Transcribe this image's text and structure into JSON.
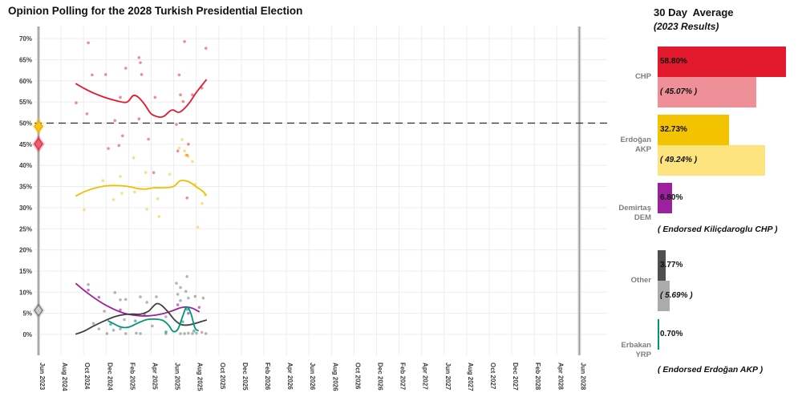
{
  "title": "Opinion Polling for the 2028 Turkish Presidential Election",
  "panel": {
    "header": "30 Day  Average",
    "subheader": "(2023 Results)",
    "parties": [
      {
        "id": "chp",
        "name_line1": "CHP",
        "name_line2": "",
        "avg": 58.8,
        "avg_label": "58.80%",
        "result": 45.07,
        "result_label": "( 45.07% )",
        "bar_color": "#e2192c",
        "result_bar_color": "#ef9098"
      },
      {
        "id": "akp",
        "name_line1": "Erdoğan",
        "name_line2": "AKP",
        "avg": 32.73,
        "avg_label": "32.73%",
        "result": 49.24,
        "result_label": "( 49.24% )",
        "bar_color": "#f3c300",
        "result_bar_color": "#fde47f"
      },
      {
        "id": "dem",
        "name_line1": "Demirtaş",
        "name_line2": "DEM",
        "avg": 6.8,
        "avg_label": "6.80%",
        "endorsement": "( Endorsed Kiliçdaroglu CHP )",
        "bar_color": "#9c219c"
      },
      {
        "id": "other",
        "name_line1": "Other",
        "name_line2": "",
        "avg": 3.77,
        "avg_label": "3.77%",
        "result": 5.69,
        "result_label": "( 5.69% )",
        "bar_color": "#4f4f4f",
        "result_bar_color": "#ababab"
      },
      {
        "id": "yrp",
        "name_line1": "Erbakan",
        "name_line2": "YRP",
        "avg": 0.7,
        "avg_label": "0.70%",
        "endorsement": "( Endorsed Erdoğan AKP )",
        "bar_color": "#009478"
      }
    ]
  },
  "chart_data": {
    "type": "scatter",
    "title": "Opinion Polling for the 2028 Turkish Presidential Election",
    "x_axis": {
      "note": "t = tick index, ticks evenly spaced; first tick Jun 2023, then every 2 months Aug 2024 - Jun 2028",
      "tick_labels": [
        "Jun 2023",
        "Aug 2024",
        "Oct 2024",
        "Dec 2024",
        "Feb 2025",
        "Apr 2025",
        "Jun 2025",
        "Aug 2025",
        "Oct 2025",
        "Dec 2025",
        "Feb 2026",
        "Apr 2026",
        "Jun 2026",
        "Aug 2026",
        "Oct 2026",
        "Dec 2026",
        "Feb 2027",
        "Apr 2027",
        "Jun 2027",
        "Aug 2027",
        "Oct 2027",
        "Dec 2027",
        "Feb 2028",
        "Apr 2028",
        "Jun 2028"
      ]
    },
    "y_axis": {
      "unit": "%",
      "ticks": [
        0,
        5,
        10,
        15,
        20,
        25,
        30,
        35,
        40,
        45,
        50,
        55,
        60,
        65,
        70
      ],
      "ylim": [
        0,
        72
      ]
    },
    "grid": true,
    "majority_line_pct": 50,
    "election_vline_ticks": [
      0,
      24
    ],
    "markers_2023_results": [
      {
        "party": "Erdoğan AKP",
        "value": 49.24,
        "fill": "#f5c518",
        "stroke": "#e0ac00",
        "halo": "#f5c518"
      },
      {
        "party": "Kılıçdaroğlu CHP",
        "value": 45.07,
        "fill": "#ea5f72",
        "stroke": "#d92742",
        "halo": "#e2192c"
      },
      {
        "party": "Other",
        "value": 5.69,
        "fill": "#c9c9c9",
        "stroke": "#6f6f6f",
        "halo": "#9a9a9a"
      }
    ],
    "series": [
      {
        "name": "CHP",
        "color": "#e2192c",
        "point_color": "rgba(227,25,44,0.5)",
        "trend": [
          [
            1.67,
            59.3
          ],
          [
            2.03,
            58.2
          ],
          [
            2.49,
            57.0
          ],
          [
            2.99,
            56.0
          ],
          [
            3.45,
            55.3
          ],
          [
            3.81,
            54.9
          ],
          [
            3.99,
            55.2
          ],
          [
            4.2,
            56.5
          ],
          [
            4.41,
            56.2
          ],
          [
            4.7,
            54.5
          ],
          [
            4.98,
            52.3
          ],
          [
            5.23,
            51.6
          ],
          [
            5.41,
            51.4
          ],
          [
            5.59,
            51.7
          ],
          [
            5.84,
            52.9
          ],
          [
            5.98,
            53.1
          ],
          [
            6.16,
            52.6
          ],
          [
            6.33,
            52.8
          ],
          [
            6.65,
            54.5
          ],
          [
            7.01,
            57.3
          ],
          [
            7.26,
            59.0
          ],
          [
            7.44,
            60.2
          ]
        ],
        "polls": [
          [
            2.21,
            69.0
          ],
          [
            6.48,
            69.3
          ],
          [
            7.43,
            67.7
          ],
          [
            4.46,
            65.5
          ],
          [
            4.52,
            64.3
          ],
          [
            3.87,
            63.0
          ],
          [
            2.38,
            61.4
          ],
          [
            2.98,
            61.5
          ],
          [
            4.58,
            61.5
          ],
          [
            6.24,
            61.4
          ],
          [
            7.25,
            58.3
          ],
          [
            6.83,
            56.7
          ],
          [
            5.17,
            56.1
          ],
          [
            3.63,
            56.1
          ],
          [
            1.67,
            54.8
          ],
          [
            2.15,
            52.2
          ],
          [
            3.39,
            50.6
          ],
          [
            4.46,
            51.0
          ],
          [
            4.88,
            46.2
          ],
          [
            3.1,
            44.0
          ],
          [
            3.57,
            44.7
          ],
          [
            6.18,
            43.4
          ],
          [
            6.59,
            42.4
          ],
          [
            6.3,
            56.7
          ],
          [
            6.42,
            55.1
          ],
          [
            6.65,
            45.0
          ],
          [
            5.11,
            38.3
          ],
          [
            6.59,
            32.3
          ],
          [
            3.73,
            47.0
          ],
          [
            6.12,
            49.7
          ]
        ]
      },
      {
        "name": "Erdoğan AKP",
        "color": "#f0bf00",
        "point_color": "rgba(243,195,0,0.5)",
        "trend": [
          [
            1.67,
            32.8
          ],
          [
            2.14,
            34.0
          ],
          [
            2.63,
            34.8
          ],
          [
            3.1,
            35.2
          ],
          [
            3.63,
            35.2
          ],
          [
            4.09,
            34.9
          ],
          [
            4.41,
            34.5
          ],
          [
            4.77,
            34.4
          ],
          [
            5.12,
            34.7
          ],
          [
            5.48,
            34.7
          ],
          [
            5.84,
            34.8
          ],
          [
            6.05,
            35.2
          ],
          [
            6.26,
            36.3
          ],
          [
            6.48,
            36.4
          ],
          [
            6.72,
            36.0
          ],
          [
            7.01,
            34.9
          ],
          [
            7.26,
            34.0
          ],
          [
            7.44,
            33.0
          ]
        ],
        "polls": [
          [
            2.03,
            29.5
          ],
          [
            2.86,
            36.4
          ],
          [
            3.63,
            37.4
          ],
          [
            3.33,
            31.9
          ],
          [
            3.7,
            33.4
          ],
          [
            4.22,
            41.8
          ],
          [
            4.26,
            33.7
          ],
          [
            4.76,
            38.3
          ],
          [
            4.81,
            29.6
          ],
          [
            5.29,
            32.1
          ],
          [
            5.82,
            37.9
          ],
          [
            6.54,
            42.4
          ],
          [
            6.48,
            43.4
          ],
          [
            6.83,
            40.9
          ],
          [
            6.65,
            42.1
          ],
          [
            6.95,
            35.5
          ],
          [
            7.07,
            25.4
          ],
          [
            6.24,
            44.1
          ],
          [
            5.35,
            27.9
          ],
          [
            7.26,
            31.0
          ],
          [
            7.4,
            33.0
          ],
          [
            6.37,
            46.1
          ]
        ]
      },
      {
        "name": "Demirtaş DEM",
        "color": "#9c219c",
        "point_color": "rgba(156,33,156,0.6)",
        "trend": [
          [
            1.67,
            12.0
          ],
          [
            2.03,
            10.4
          ],
          [
            2.38,
            9.0
          ],
          [
            2.74,
            7.7
          ],
          [
            3.1,
            6.6
          ],
          [
            3.45,
            5.7
          ],
          [
            3.81,
            5.0
          ],
          [
            4.16,
            4.6
          ],
          [
            4.52,
            4.4
          ],
          [
            4.88,
            4.4
          ],
          [
            5.23,
            4.6
          ],
          [
            5.59,
            5.0
          ],
          [
            5.94,
            5.6
          ],
          [
            6.3,
            6.3
          ],
          [
            6.55,
            6.5
          ],
          [
            6.83,
            6.2
          ],
          [
            7.12,
            5.4
          ]
        ],
        "polls": [
          [
            2.21,
            10.5
          ],
          [
            2.68,
            8.8
          ],
          [
            3.63,
            5.8
          ],
          [
            4.7,
            4.8
          ],
          [
            6.18,
            7.0
          ],
          [
            6.65,
            5.0
          ],
          [
            7.13,
            6.4
          ]
        ]
      },
      {
        "name": "Other",
        "color": "#3f3f3f",
        "point_color": "rgba(90,90,90,0.45)",
        "trend": [
          [
            1.67,
            0.1
          ],
          [
            2.03,
            0.8
          ],
          [
            2.45,
            2.0
          ],
          [
            2.92,
            3.2
          ],
          [
            3.38,
            4.2
          ],
          [
            3.81,
            4.7
          ],
          [
            4.16,
            4.8
          ],
          [
            4.52,
            4.8
          ],
          [
            4.88,
            5.5
          ],
          [
            5.12,
            6.8
          ],
          [
            5.27,
            7.3
          ],
          [
            5.48,
            6.8
          ],
          [
            5.77,
            5.2
          ],
          [
            6.01,
            3.6
          ],
          [
            6.26,
            2.5
          ],
          [
            6.48,
            2.2
          ],
          [
            6.72,
            2.3
          ],
          [
            7.01,
            2.7
          ],
          [
            7.26,
            3.1
          ],
          [
            7.44,
            3.4
          ]
        ],
        "polls": [
          [
            2.21,
            11.8
          ],
          [
            3.39,
            9.9
          ],
          [
            3.87,
            8.3
          ],
          [
            4.52,
            8.9
          ],
          [
            4.81,
            7.6
          ],
          [
            5.23,
            8.9
          ],
          [
            6.18,
            9.5
          ],
          [
            6.3,
            8.0
          ],
          [
            6.59,
            13.7
          ],
          [
            6.65,
            8.6
          ],
          [
            6.95,
            9.0
          ],
          [
            7.31,
            8.6
          ],
          [
            6.3,
            11.1
          ],
          [
            6.54,
            10.2
          ],
          [
            2.44,
            2.6
          ],
          [
            2.68,
            1.3
          ],
          [
            3.04,
            0.2
          ],
          [
            3.81,
            3.5
          ],
          [
            3.63,
            8.2
          ],
          [
            3.87,
            0.2
          ],
          [
            4.34,
            0.3
          ],
          [
            4.52,
            0.2
          ],
          [
            5.05,
            2.0
          ],
          [
            5.65,
            4.2
          ],
          [
            5.65,
            0.2
          ],
          [
            6.3,
            0.2
          ],
          [
            6.48,
            0.2
          ],
          [
            6.65,
            0.3
          ],
          [
            6.83,
            0.2
          ],
          [
            7.01,
            0.3
          ],
          [
            7.25,
            0.5
          ],
          [
            7.43,
            0.2
          ],
          [
            3.33,
            1.0
          ],
          [
            3.63,
            1.3
          ],
          [
            2.92,
            5.5
          ],
          [
            6.12,
            12.1
          ]
        ]
      },
      {
        "name": "Erbakan YRP",
        "color": "#009478",
        "point_color": "rgba(0,148,120,0.6)",
        "trend": [
          [
            3.1,
            3.2
          ],
          [
            3.63,
            1.8
          ],
          [
            3.99,
            1.7
          ],
          [
            4.41,
            2.7
          ],
          [
            4.81,
            3.5
          ],
          [
            5.23,
            3.6
          ],
          [
            5.52,
            3.3
          ],
          [
            5.77,
            2.2
          ],
          [
            5.98,
            0.7
          ],
          [
            6.19,
            1.3
          ],
          [
            6.41,
            4.5
          ],
          [
            6.58,
            6.5
          ],
          [
            6.76,
            5.0
          ],
          [
            6.94,
            1.6
          ],
          [
            7.08,
            0.9
          ]
        ],
        "polls": [
          [
            3.2,
            2.4
          ],
          [
            4.3,
            3.2
          ],
          [
            5.66,
            0.6
          ],
          [
            6.4,
            3.0
          ],
          [
            6.6,
            5.9
          ],
          [
            6.9,
            0.8
          ]
        ]
      }
    ]
  }
}
